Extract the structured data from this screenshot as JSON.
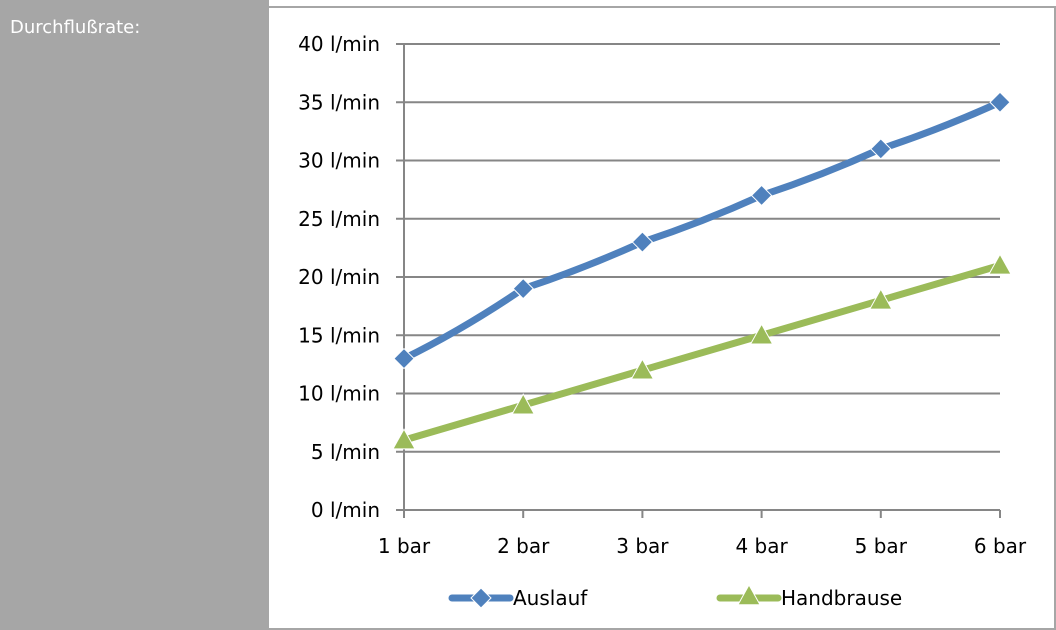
{
  "field_label": "Durchflußrate:",
  "chart_data": {
    "type": "line",
    "categories": [
      "1 bar",
      "2 bar",
      "3 bar",
      "4 bar",
      "5 bar",
      "6 bar"
    ],
    "y_ticks": [
      "0 l/min",
      "5 l/min",
      "10 l/min",
      "15 l/min",
      "20 l/min",
      "25 l/min",
      "30 l/min",
      "35 l/min",
      "40 l/min"
    ],
    "ylim": [
      0,
      40
    ],
    "grid": true,
    "legend_position": "bottom",
    "series": [
      {
        "name": "Auslauf",
        "values": [
          13,
          19,
          23,
          27,
          31,
          35
        ],
        "color": "#4f81bd",
        "marker": "diamond"
      },
      {
        "name": "Handbrause",
        "values": [
          6,
          9,
          12,
          15,
          18,
          21
        ],
        "color": "#9bbb59",
        "marker": "triangle"
      }
    ]
  }
}
